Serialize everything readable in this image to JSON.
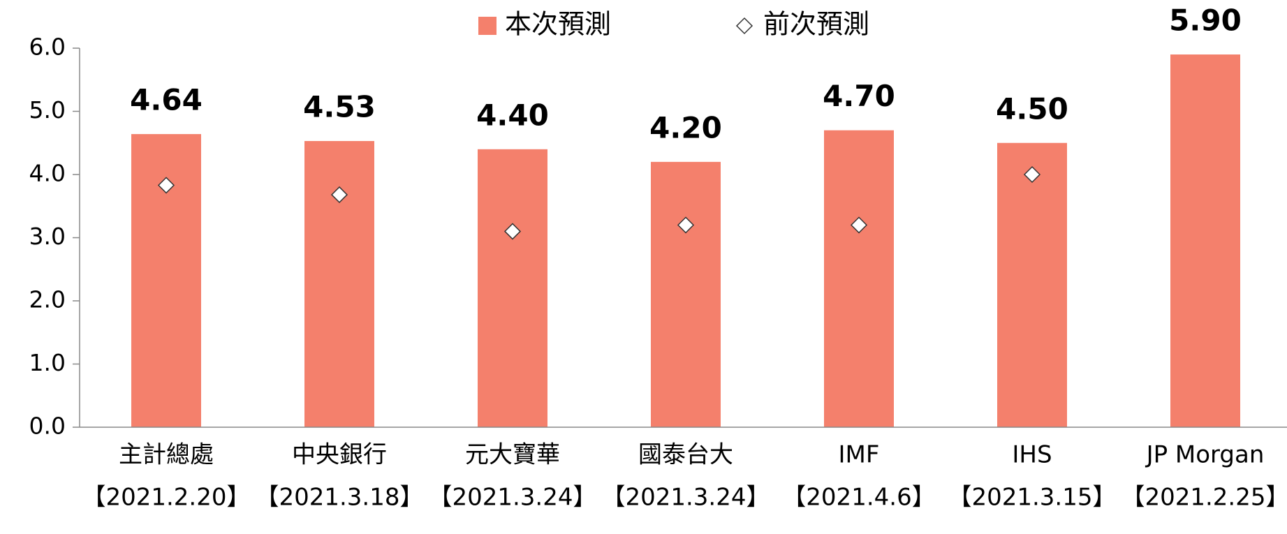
{
  "chart_data": {
    "type": "bar",
    "categories": [
      "主計總處",
      "中央銀行",
      "元大寶華",
      "國泰台大",
      "IMF",
      "IHS",
      "JP Morgan"
    ],
    "category_dates": [
      "【2021.2.20】",
      "【2021.3.18】",
      "【2021.3.24】",
      "【2021.3.24】",
      "【2021.4.6】",
      "【2021.3.15】",
      "【2021.2.25】"
    ],
    "series": [
      {
        "name": "本次預測",
        "color": "#f4806c",
        "values": [
          4.64,
          4.53,
          4.4,
          4.2,
          4.7,
          4.5,
          5.9
        ],
        "value_labels": [
          "4.64",
          "4.53",
          "4.40",
          "4.20",
          "4.70",
          "4.50",
          "5.90"
        ]
      },
      {
        "name": "前次預測",
        "color": "#ffffff",
        "marker": "diamond",
        "values": [
          3.83,
          3.68,
          3.1,
          3.2,
          3.2,
          4.0,
          null
        ]
      }
    ],
    "ylim": [
      0,
      6
    ],
    "yticks": [
      {
        "value": 0,
        "label": "0.0"
      },
      {
        "value": 1,
        "label": "1.0"
      },
      {
        "value": 2,
        "label": "2.0"
      },
      {
        "value": 3,
        "label": "3.0"
      },
      {
        "value": 4,
        "label": "4.0"
      },
      {
        "value": 5,
        "label": "5.0"
      },
      {
        "value": 6,
        "label": "6.0"
      }
    ],
    "grid": false
  }
}
